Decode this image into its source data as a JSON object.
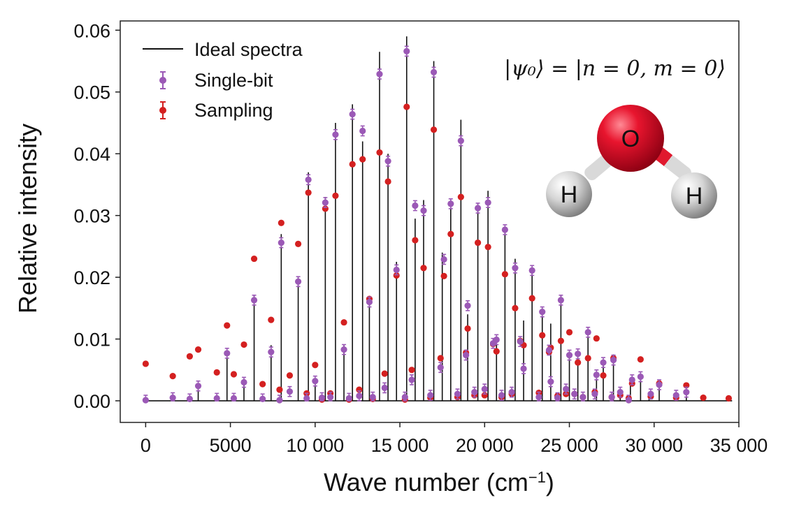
{
  "chart_data": {
    "type": "scatter",
    "title": "",
    "xlabel": "Wave number (cm",
    "xlabel_superscript": "−1",
    "xlabel_suffix": ")",
    "ylabel": "Relative intensity",
    "xlim": [
      -1500,
      35000
    ],
    "ylim": [
      -0.0035,
      0.0615
    ],
    "x_ticks": [
      0,
      5000,
      10000,
      15000,
      20000,
      25000,
      30000,
      35000
    ],
    "x_tick_labels": [
      "0",
      "5000",
      "10 000",
      "15 000",
      "20 000",
      "25 000",
      "30 000",
      "35 000"
    ],
    "y_ticks": [
      0,
      0.01,
      0.02,
      0.03,
      0.04,
      0.05,
      0.06
    ],
    "y_tick_labels": [
      "0.00",
      "0.01",
      "0.02",
      "0.03",
      "0.04",
      "0.05",
      "0.06"
    ],
    "grid": false,
    "legend_position": "top-left",
    "annotation": "|ψ₀⟩ = |n = 0, m = 0⟩",
    "molecule": {
      "atoms": [
        "O",
        "H",
        "H"
      ]
    },
    "series": [
      {
        "name": "Ideal spectra",
        "kind": "stick",
        "color": "#111111",
        "x": [
          3100,
          4800,
          5800,
          6400,
          7400,
          8000,
          9000,
          9600,
          10000,
          10600,
          11200,
          11700,
          12200,
          12800,
          13200,
          13800,
          14300,
          14800,
          15400,
          15900,
          16400,
          17000,
          17500,
          18000,
          18600,
          19000,
          19600,
          20200,
          20700,
          21200,
          21800,
          22300,
          22800,
          23400,
          23900,
          24500,
          25000,
          25500,
          26100,
          26600,
          27000,
          27600,
          28000,
          28600,
          29200,
          29700,
          30300,
          31300,
          31900
        ],
        "values": [
          0.0025,
          0.008,
          0.003,
          0.017,
          0.009,
          0.027,
          0.02,
          0.037,
          0.003,
          0.033,
          0.045,
          0.009,
          0.048,
          0.042,
          0.016,
          0.0565,
          0.04,
          0.0225,
          0.059,
          0.0295,
          0.0325,
          0.055,
          0.024,
          0.0325,
          0.0455,
          0.014,
          0.032,
          0.034,
          0.01,
          0.028,
          0.023,
          0.013,
          0.0215,
          0.015,
          0.0125,
          0.017,
          0.0075,
          0.008,
          0.0115,
          0.0045,
          0.0065,
          0.0075,
          0.0015,
          0.003,
          0.0035,
          0.001,
          0.0025,
          0.0008,
          0.0012
        ]
      },
      {
        "name": "Single-bit",
        "kind": "points_with_errorbars",
        "color": "#9b59b6",
        "x": [
          0,
          1600,
          2600,
          3100,
          4200,
          4800,
          5200,
          5800,
          6400,
          6900,
          7400,
          7900,
          8000,
          8500,
          9000,
          9500,
          9600,
          10000,
          10400,
          10600,
          10900,
          11200,
          11700,
          12000,
          12200,
          12600,
          12800,
          13200,
          13400,
          13800,
          14100,
          14300,
          14800,
          15300,
          15400,
          15700,
          15900,
          16400,
          16800,
          17000,
          17400,
          17600,
          18000,
          18400,
          18600,
          18900,
          19000,
          19400,
          19600,
          20000,
          20200,
          20500,
          20700,
          21000,
          21200,
          21600,
          21800,
          22100,
          22300,
          22800,
          23200,
          23400,
          23800,
          23900,
          24300,
          24500,
          24800,
          25000,
          25300,
          25500,
          25800,
          26100,
          26500,
          26600,
          27000,
          27500,
          27600,
          28000,
          28500,
          28700,
          29200,
          29800,
          30300,
          31300,
          31900
        ],
        "values": [
          0.0001,
          0.0005,
          0.0003,
          0.0024,
          0.0004,
          0.0077,
          0.0004,
          0.003,
          0.0163,
          0.0003,
          0.0079,
          0.0001,
          0.0256,
          0.0015,
          0.0193,
          0.0004,
          0.0358,
          0.0032,
          0.0005,
          0.0321,
          0.0006,
          0.0431,
          0.0083,
          0.0004,
          0.0464,
          0.0008,
          0.0437,
          0.016,
          0.0006,
          0.0529,
          0.0021,
          0.0388,
          0.0212,
          0.0006,
          0.0566,
          0.0034,
          0.0316,
          0.0308,
          0.0009,
          0.0532,
          0.0054,
          0.0229,
          0.0319,
          0.0011,
          0.0421,
          0.0074,
          0.0154,
          0.0014,
          0.0312,
          0.0019,
          0.0321,
          0.0093,
          0.0099,
          0.0009,
          0.0277,
          0.0014,
          0.0215,
          0.0096,
          0.0052,
          0.0211,
          0.0006,
          0.0144,
          0.0082,
          0.0031,
          0.0005,
          0.0163,
          0.0019,
          0.0074,
          0.0011,
          0.0076,
          0.0006,
          0.0111,
          0.0011,
          0.0042,
          0.0062,
          0.0006,
          0.0066,
          0.0014,
          0.0001,
          0.0034,
          0.0039,
          0.0011,
          0.0026,
          0.0009,
          0.0014
        ],
        "error": 0.0008
      },
      {
        "name": "Sampling",
        "kind": "points_with_errorbars",
        "color": "#d42020",
        "x": [
          0,
          1600,
          2600,
          3100,
          4200,
          4800,
          5200,
          5800,
          6400,
          6900,
          7400,
          7900,
          8000,
          8500,
          9000,
          9500,
          9600,
          10000,
          10400,
          10600,
          10900,
          11200,
          11700,
          12000,
          12200,
          12600,
          12800,
          13200,
          13400,
          13800,
          14100,
          14300,
          14800,
          15300,
          15400,
          15700,
          15900,
          16400,
          16800,
          17000,
          17400,
          17600,
          18000,
          18400,
          18600,
          18900,
          19000,
          19400,
          19600,
          20000,
          20200,
          20500,
          20700,
          21000,
          21200,
          21600,
          21800,
          22100,
          22300,
          22800,
          23200,
          23400,
          23800,
          23900,
          24300,
          24500,
          24800,
          25000,
          25300,
          25500,
          25800,
          26100,
          26500,
          26600,
          27000,
          27500,
          27600,
          28000,
          28500,
          28700,
          29200,
          29800,
          30300,
          31300,
          31900,
          32900,
          34400
        ],
        "values": [
          0.006,
          0.004,
          0.0072,
          0.0083,
          0.0046,
          0.0122,
          0.0043,
          0.0091,
          0.023,
          0.0027,
          0.0131,
          0.0018,
          0.0288,
          0.0041,
          0.0254,
          0.0012,
          0.0337,
          0.0058,
          0.0002,
          0.0311,
          0.0012,
          0.0332,
          0.0127,
          0.0002,
          0.0383,
          0.0018,
          0.0391,
          0.0165,
          0.0003,
          0.0402,
          0.0044,
          0.0355,
          0.0203,
          0.0002,
          0.0476,
          0.005,
          0.026,
          0.0215,
          0.0005,
          0.0439,
          0.0069,
          0.0202,
          0.027,
          0.0006,
          0.033,
          0.0078,
          0.0117,
          0.0009,
          0.0256,
          0.0009,
          0.0249,
          0.0092,
          0.008,
          0.0006,
          0.0205,
          0.0011,
          0.015,
          0.0097,
          0.009,
          0.0166,
          0.0013,
          0.0106,
          0.0079,
          0.0086,
          0.0008,
          0.0097,
          0.0011,
          0.0111,
          0.0011,
          0.0062,
          0.0006,
          0.0069,
          0.0014,
          0.0101,
          0.0041,
          0.0006,
          0.0069,
          0.0009,
          0.0004,
          0.0028,
          0.0067,
          0.0007,
          0.0028,
          0.0005,
          0.0025,
          0.0005,
          0.0004
        ],
        "error": 0.0003
      }
    ]
  }
}
